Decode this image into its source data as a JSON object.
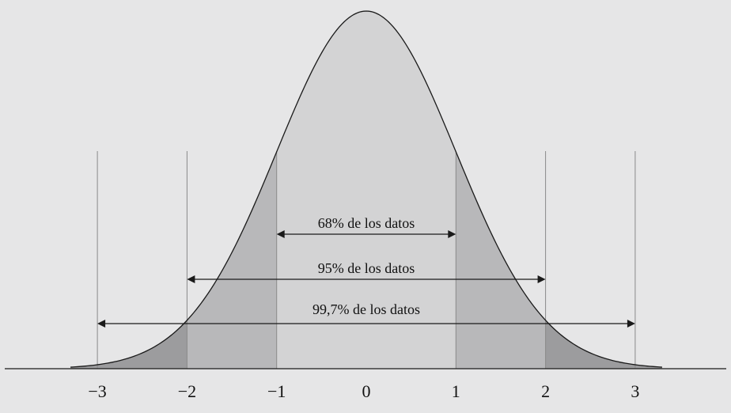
{
  "chart_data": {
    "type": "area",
    "title": "",
    "xlabel": "",
    "ylabel": "",
    "distribution": "normal",
    "mean": 0,
    "sd": 1,
    "xlim": [
      -3.3,
      3.3
    ],
    "x_ticks": [
      -3,
      -2,
      -1,
      0,
      1,
      2,
      3
    ],
    "x_tick_labels": [
      "−3",
      "−2",
      "−1",
      "0",
      "1",
      "2",
      "3"
    ],
    "bands": [
      {
        "range": [
          -1,
          1
        ],
        "label": "68% de los datos",
        "color": "#d3d3d4"
      },
      {
        "range": [
          -2,
          2
        ],
        "label": "95% de los datos",
        "color": "#b8b8ba"
      },
      {
        "range": [
          -3,
          3
        ],
        "label": "99,7% de los datos",
        "color": "#9c9c9e"
      }
    ],
    "tail_color": "#9c9c9e",
    "grid": false,
    "legend": "none"
  }
}
